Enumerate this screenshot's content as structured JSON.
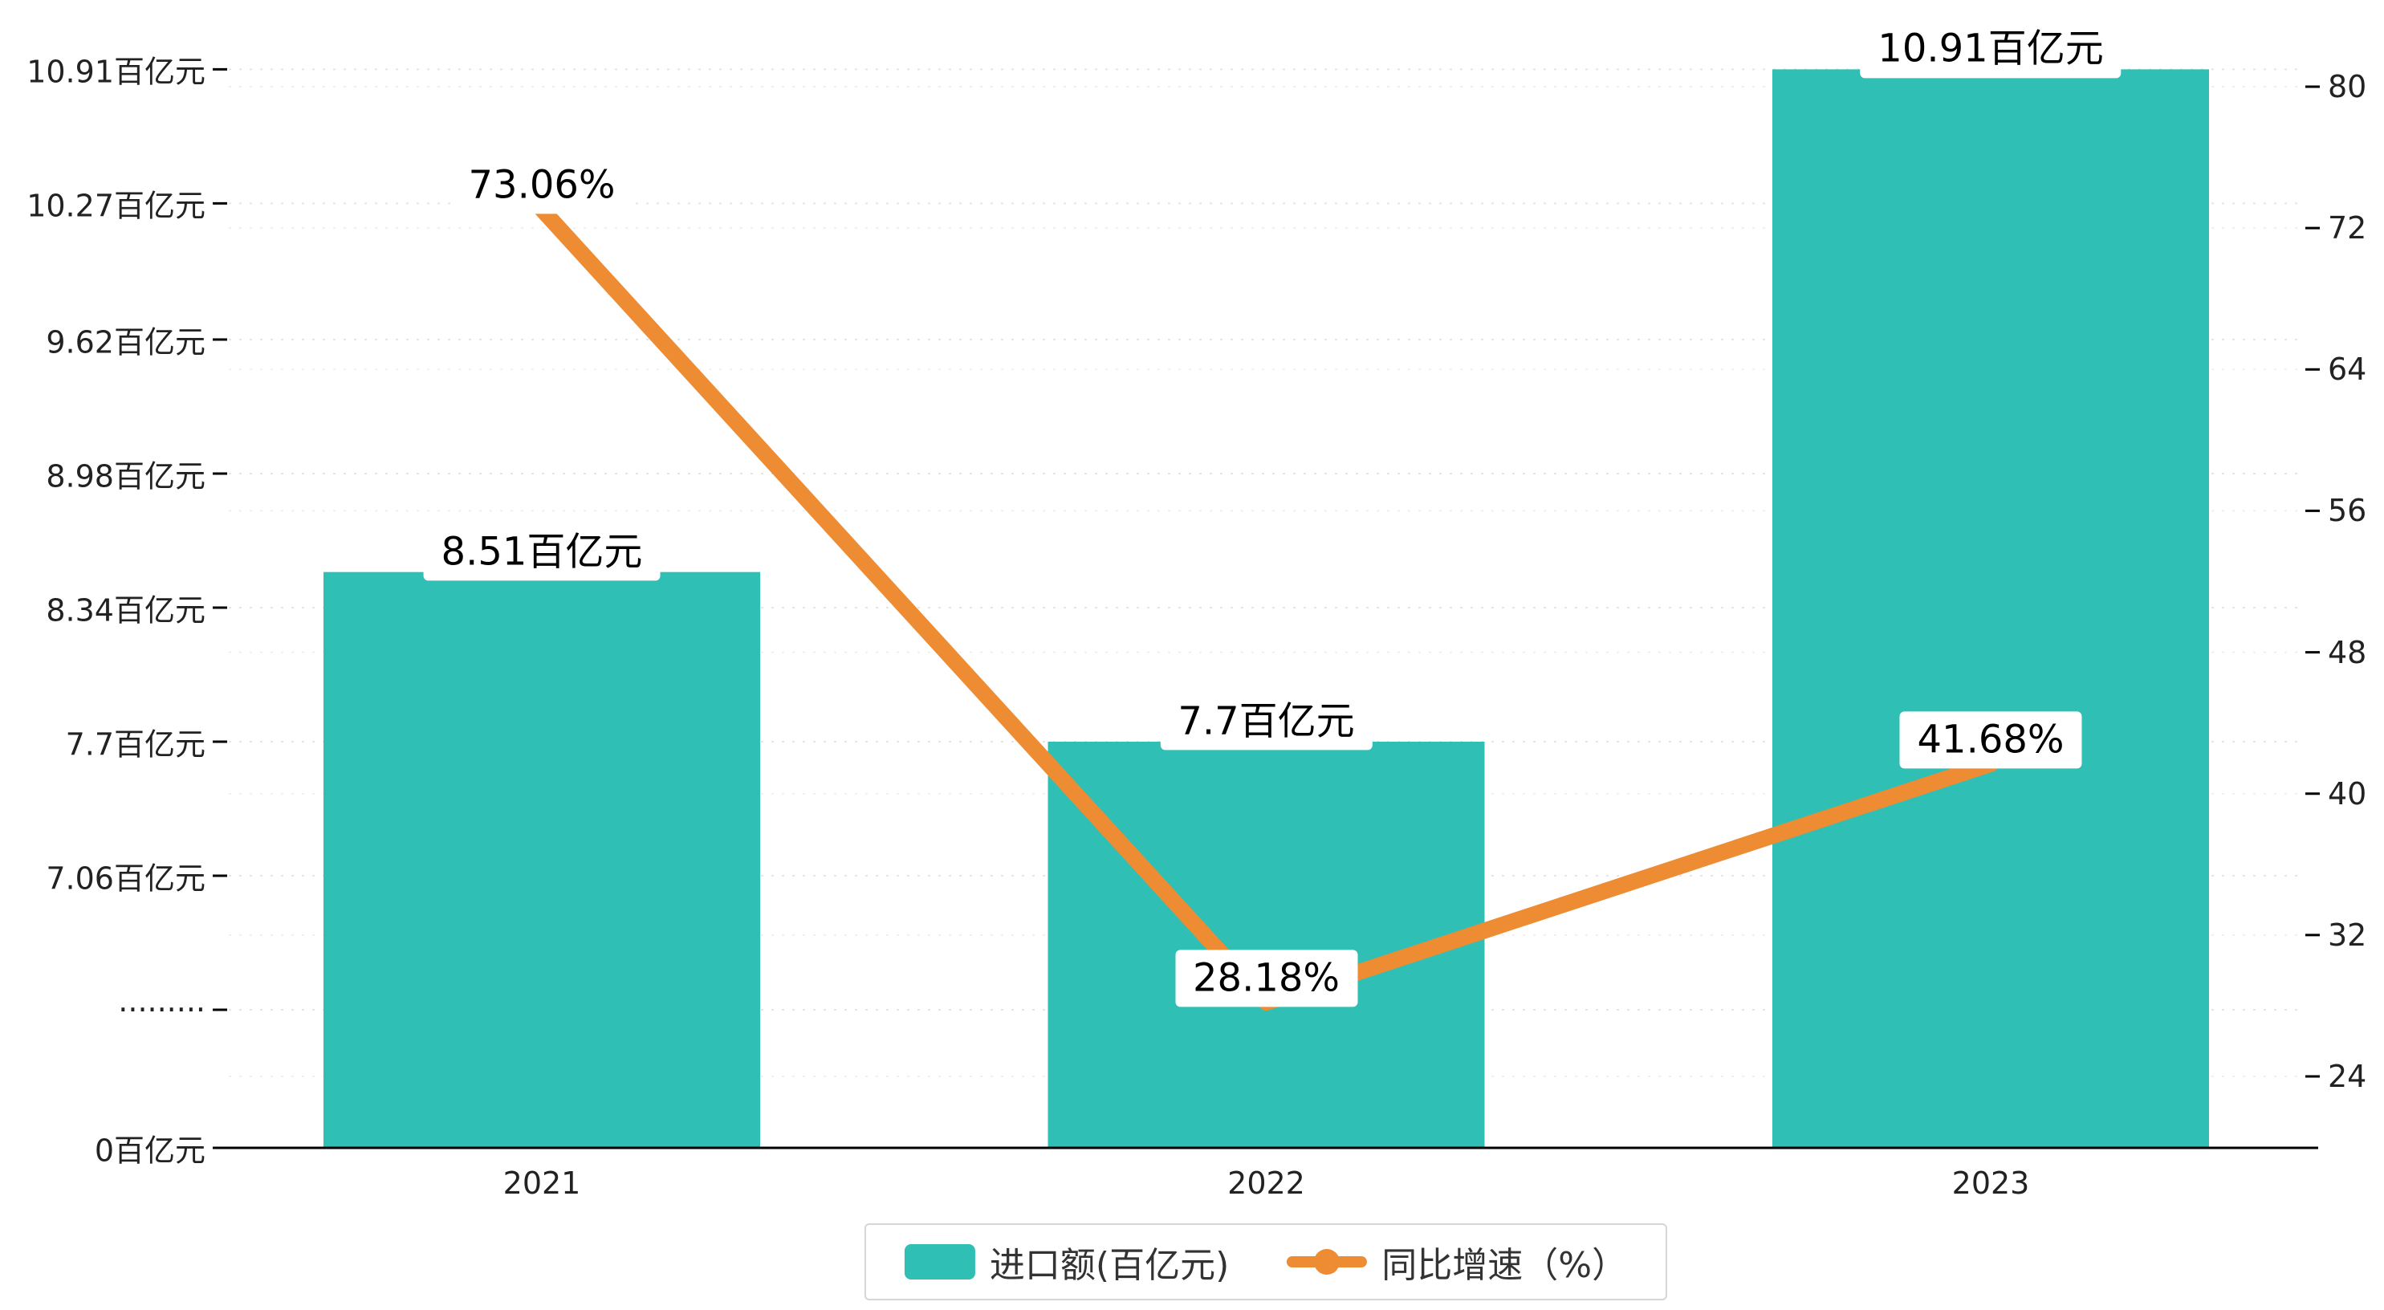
{
  "chart": {
    "background": "#ffffff",
    "bar_color": "#2fbfb4",
    "line_color": "#ee8c33",
    "axis_color": "#000000",
    "grid_color": "#e3e3e3",
    "label_box_color": "#ffffff",
    "label_text_color": "#000000"
  },
  "chart_data": {
    "type": "bar+line",
    "categories": [
      "2021",
      "2022",
      "2023"
    ],
    "series": [
      {
        "name": "进口额(百亿元)",
        "type": "bar",
        "axis": "left",
        "color": "#2fbfb4",
        "values": [
          8.51,
          7.7,
          10.91
        ],
        "labels": [
          "8.51百亿元",
          "7.7百亿元",
          "10.91百亿元"
        ]
      },
      {
        "name": "同比增速（%）",
        "type": "line",
        "axis": "right",
        "color": "#ee8c33",
        "values": [
          73.06,
          28.18,
          41.68
        ],
        "labels": [
          "73.06%",
          "28.18%",
          "41.68%"
        ]
      }
    ],
    "left_axis": {
      "unit": "百亿元",
      "has_break": true,
      "tick_labels": [
        "10.91百亿元",
        "10.27百亿元",
        "9.62百亿元",
        "8.98百亿元",
        "8.34百亿元",
        "7.7百亿元",
        "7.06百亿元",
        "·········",
        "0百亿元"
      ],
      "tick_values": [
        10.91,
        10.27,
        9.62,
        8.98,
        8.34,
        7.7,
        7.06,
        null,
        0
      ]
    },
    "right_axis": {
      "tick_labels": [
        "80",
        "72",
        "64",
        "56",
        "48",
        "40",
        "32",
        "24"
      ],
      "tick_values": [
        80,
        72,
        64,
        56,
        48,
        40,
        32,
        24
      ],
      "min": 24,
      "max": 80
    },
    "legend_position": "bottom-center",
    "grid": "dashed-horizontal"
  }
}
